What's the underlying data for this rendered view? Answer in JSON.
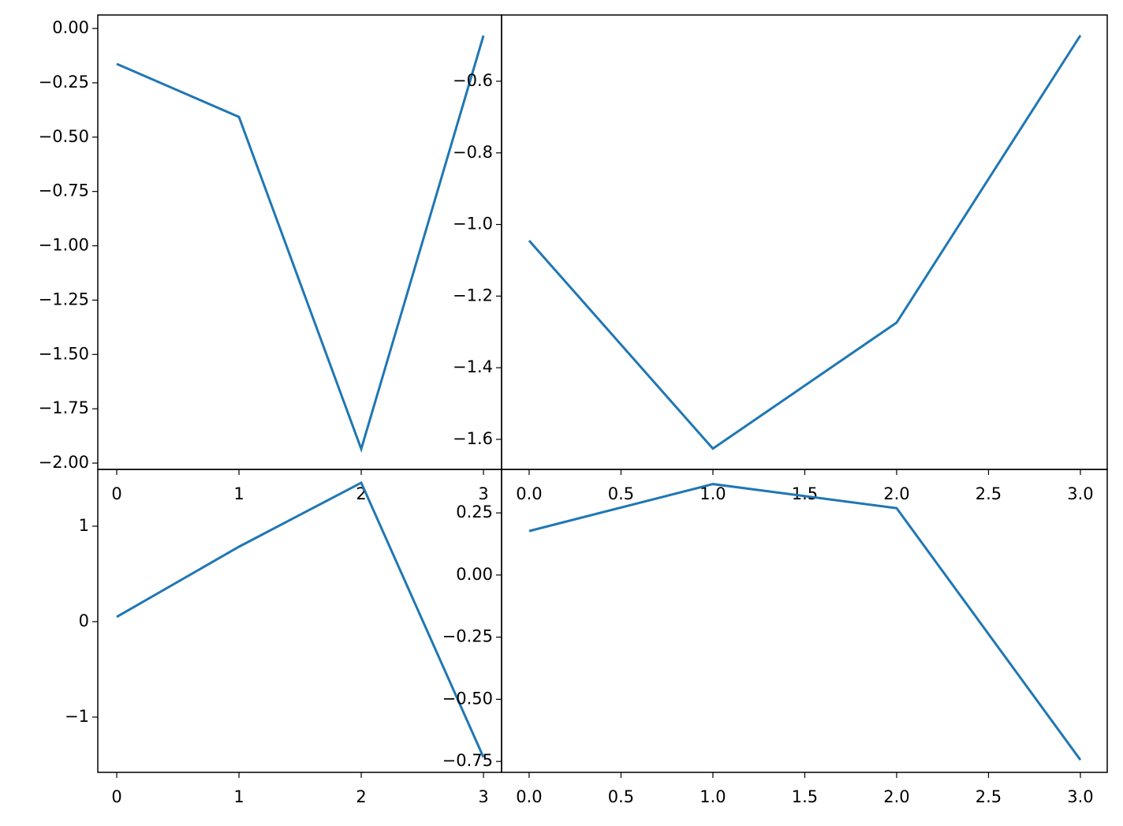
{
  "chart_data": [
    {
      "type": "line",
      "x": [
        0,
        1,
        2,
        3
      ],
      "values": [
        -0.163,
        -0.407,
        -1.935,
        -0.033
      ],
      "color": "#1f77b4",
      "xlim": [
        -0.155,
        3.148
      ],
      "ylim": [
        -2.029,
        0.062
      ],
      "xticks": [
        0,
        1,
        2,
        3
      ],
      "yticks": [
        {
          "value": 0,
          "label": "0.00"
        },
        {
          "value": -0.25,
          "label": "−0.25"
        },
        {
          "value": -0.5,
          "label": "−0.50"
        },
        {
          "value": -0.75,
          "label": "−0.75"
        },
        {
          "value": -1,
          "label": "−1.00"
        },
        {
          "value": -1.25,
          "label": "−1.25"
        },
        {
          "value": -1.5,
          "label": "−1.50"
        },
        {
          "value": -1.75,
          "label": "−1.75"
        },
        {
          "value": -2,
          "label": "−2.00"
        }
      ]
    },
    {
      "type": "line",
      "x": [
        0,
        1,
        2,
        3
      ],
      "values": [
        -1.045,
        -1.626,
        -1.274,
        -0.472
      ],
      "color": "#1f77b4",
      "xlim": [
        -0.15,
        3.146
      ],
      "ylim": [
        -1.684,
        -0.415
      ],
      "xticks": [
        {
          "value": 0,
          "label": "0.0"
        },
        0.5,
        {
          "value": 1,
          "label": "1.0"
        },
        1.5,
        {
          "value": 2,
          "label": "2.0"
        },
        2.5,
        {
          "value": 3,
          "label": "3.0"
        }
      ],
      "yticks": [
        {
          "value": -0.6,
          "label": "−0.6"
        },
        {
          "value": -0.8,
          "label": "−0.8"
        },
        {
          "value": -1,
          "label": "−1.0"
        },
        {
          "value": -1.2,
          "label": "−1.2"
        },
        {
          "value": -1.4,
          "label": "−1.4"
        },
        {
          "value": -1.6,
          "label": "−1.6"
        }
      ]
    },
    {
      "type": "line",
      "x": [
        0,
        1,
        2,
        3
      ],
      "values": [
        0.05,
        0.785,
        1.455,
        -1.421
      ],
      "color": "#1f77b4",
      "xlim": [
        -0.155,
        3.148
      ],
      "ylim": [
        -1.579,
        1.595
      ],
      "xticks": [
        0,
        1,
        2,
        3
      ],
      "yticks": [
        1,
        0,
        {
          "value": -1,
          "label": "−1"
        }
      ]
    },
    {
      "type": "line",
      "x": [
        0,
        1,
        2,
        3
      ],
      "values": [
        0.177,
        0.366,
        0.269,
        -0.744
      ],
      "color": "#1f77b4",
      "xlim": [
        -0.15,
        3.146
      ],
      "ylim": [
        -0.794,
        0.425
      ],
      "xticks": [
        {
          "value": 0,
          "label": "0.0"
        },
        0.5,
        {
          "value": 1,
          "label": "1.0"
        },
        1.5,
        {
          "value": 2,
          "label": "2.0"
        },
        2.5,
        {
          "value": 3,
          "label": "3.0"
        }
      ],
      "yticks": [
        {
          "value": 0.25,
          "label": "0.25"
        },
        {
          "value": 0,
          "label": "0.00"
        },
        {
          "value": -0.25,
          "label": "−0.25"
        },
        {
          "value": -0.5,
          "label": "−0.50"
        },
        {
          "value": -0.75,
          "label": "−0.75"
        }
      ]
    }
  ]
}
